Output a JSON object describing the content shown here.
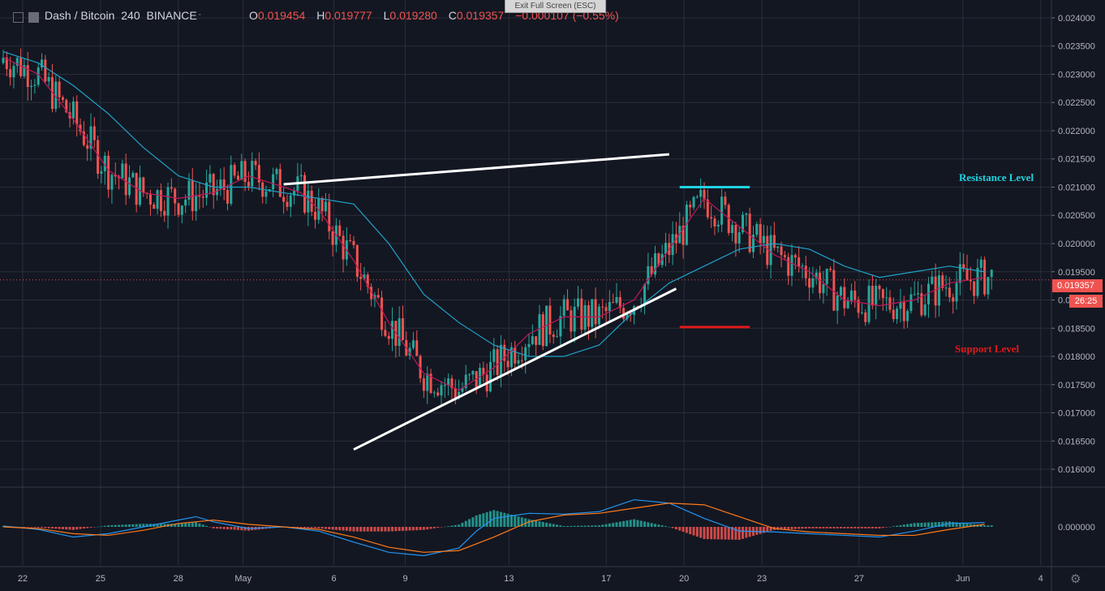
{
  "header": {
    "symbol": "Dash / Bitcoin",
    "interval": "240",
    "exchange": "BINANCE",
    "o_label": "O",
    "o_value": "0.019454",
    "h_label": "H",
    "h_value": "0.019777",
    "l_label": "L",
    "l_value": "0.019280",
    "c_label": "C",
    "c_value": "0.019357",
    "change": "−0.000107 (−0.55%)"
  },
  "exit_fullscreen": "Exit Full Screen (ESC)",
  "annotations": {
    "resistance_label": "Resistance Level",
    "support_label": "Support Level",
    "resistance_color": "#20d3e0",
    "support_color": "#e01919"
  },
  "last_price_badge": "0.019357",
  "countdown_badge": "26:25",
  "colors": {
    "background": "#131722",
    "grid": "#2a2e39",
    "up": "#26a69a",
    "down": "#ef5350",
    "ma_fast": "#c2185b",
    "ma_slow": "#1fa2c8",
    "trendline": "#ffffff",
    "macd_line": "#2196f3",
    "signal_line": "#ff7a1a"
  },
  "chart_data": [
    {
      "type": "candlestick",
      "ylim": [
        0.0159,
        0.0241
      ],
      "yticks": [
        "0.024000",
        "0.023500",
        "0.023000",
        "0.022500",
        "0.022000",
        "0.021500",
        "0.021000",
        "0.020500",
        "0.020000",
        "0.019500",
        "0.019000",
        "0.018500",
        "0.018000",
        "0.017500",
        "0.017000",
        "0.016500",
        "0.016000"
      ],
      "x_labels": [
        "22",
        "25",
        "28",
        "May",
        "6",
        "9",
        "13",
        "17",
        "20",
        "23",
        "27",
        "Jun",
        "4"
      ],
      "series": [
        {
          "name": "MA fast",
          "x": [
            0,
            10,
            20,
            30,
            40,
            50,
            60,
            70,
            80,
            85,
            90,
            100,
            110,
            120,
            130,
            140,
            150,
            160,
            170,
            180,
            190,
            200,
            210,
            220,
            230,
            240,
            250,
            260,
            270,
            280
          ],
          "y": [
            0.0233,
            0.023,
            0.0222,
            0.0213,
            0.0209,
            0.0208,
            0.0209,
            0.0212,
            0.021,
            0.0209,
            0.0206,
            0.0197,
            0.0186,
            0.0177,
            0.0174,
            0.0178,
            0.0184,
            0.0187,
            0.0187,
            0.019,
            0.0199,
            0.0208,
            0.0203,
            0.0198,
            0.0195,
            0.019,
            0.0189,
            0.019,
            0.0193,
            0.0194
          ]
        },
        {
          "name": "MA slow",
          "x": [
            0,
            10,
            20,
            30,
            40,
            50,
            60,
            70,
            80,
            90,
            100,
            110,
            120,
            130,
            140,
            150,
            160,
            170,
            180,
            190,
            200,
            210,
            220,
            230,
            240,
            250,
            260,
            270,
            280
          ],
          "y": [
            0.0234,
            0.0232,
            0.0228,
            0.0223,
            0.0217,
            0.0212,
            0.021,
            0.021,
            0.0209,
            0.0208,
            0.0207,
            0.02,
            0.0191,
            0.0186,
            0.0182,
            0.018,
            0.018,
            0.0182,
            0.0188,
            0.0193,
            0.0196,
            0.0199,
            0.02,
            0.0199,
            0.0196,
            0.0194,
            0.0195,
            0.0196,
            0.0195
          ]
        },
        {
          "name": "Resistance trendline",
          "x": [
            80,
            190
          ],
          "y": [
            0.02105,
            0.02158
          ]
        },
        {
          "name": "Support trendline",
          "x": [
            100,
            192
          ],
          "y": [
            0.01635,
            0.0192
          ]
        },
        {
          "name": "Resistance Level",
          "x": [
            193,
            213
          ],
          "y": [
            0.021,
            0.021
          ]
        },
        {
          "name": "Support Level",
          "x": [
            193,
            213
          ],
          "y": [
            0.01852,
            0.01852
          ]
        }
      ],
      "last_close": 0.019357
    },
    {
      "type": "macd",
      "ylim": [
        -0.00045,
        0.00045
      ],
      "yticks": [
        "0.000000"
      ],
      "series": [
        {
          "name": "MACD",
          "x": [
            0,
            10,
            20,
            30,
            40,
            50,
            55,
            60,
            70,
            80,
            90,
            100,
            110,
            120,
            130,
            135,
            140,
            150,
            160,
            170,
            180,
            190,
            200,
            210,
            220,
            230,
            240,
            250,
            260,
            270,
            280
          ],
          "y": [
            1e-05,
            -3e-05,
            -0.00012,
            -8e-05,
            0.0,
            8e-05,
            0.00012,
            6e-05,
            -2e-05,
            0.0,
            -5e-05,
            -0.00018,
            -0.0003,
            -0.00034,
            -0.00025,
            -5e-05,
            0.0001,
            0.00016,
            0.00015,
            0.00018,
            0.00032,
            0.00028,
            0.0001,
            -5e-05,
            -6e-05,
            -8e-05,
            -0.0001,
            -0.00012,
            -5e-05,
            4e-05,
            5e-05
          ]
        },
        {
          "name": "Signal",
          "x": [
            0,
            10,
            20,
            30,
            40,
            50,
            60,
            70,
            80,
            90,
            100,
            110,
            120,
            130,
            140,
            150,
            160,
            170,
            180,
            190,
            200,
            210,
            220,
            230,
            240,
            250,
            260,
            270,
            280
          ],
          "y": [
            0.0,
            -2e-05,
            -8e-05,
            -0.0001,
            -4e-05,
            4e-05,
            8e-05,
            3e-05,
            0.0,
            -3e-05,
            -0.00012,
            -0.00024,
            -0.0003,
            -0.00028,
            -0.00012,
            6e-05,
            0.00014,
            0.00016,
            0.00022,
            0.00028,
            0.00026,
            0.00012,
            -2e-05,
            -6e-05,
            -8e-05,
            -0.0001,
            -0.0001,
            -3e-05,
            3e-05
          ]
        }
      ]
    }
  ]
}
